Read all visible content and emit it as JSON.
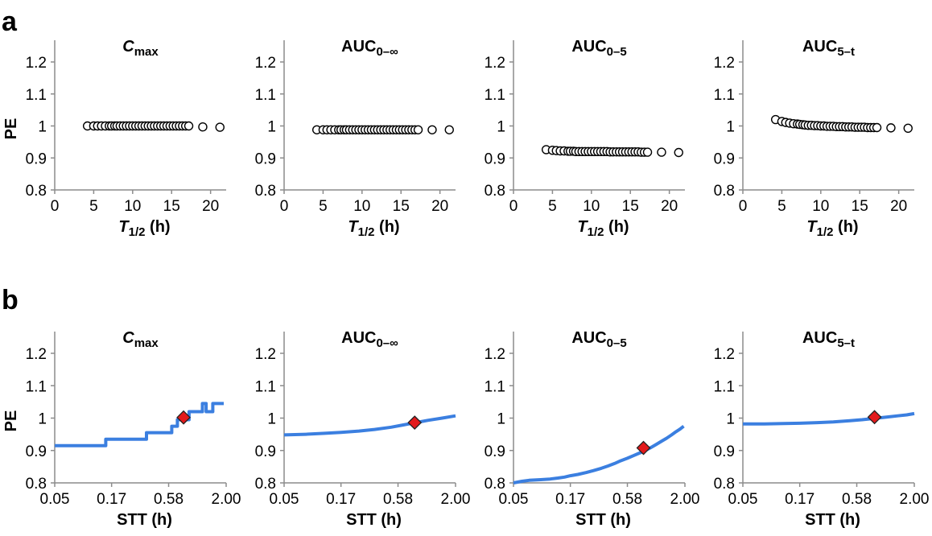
{
  "panel_letters": {
    "a": "a",
    "b": "b"
  },
  "colors": {
    "line": "#3b7fe0",
    "marker_fill": "#e31a1c",
    "marker_stroke": "#222222",
    "scatter_fill": "#ffffff",
    "scatter_stroke": "#000000"
  },
  "chart_data": [
    {
      "type": "scatter",
      "row": "a",
      "title_main": "C",
      "title_sub": "max",
      "title_main_italic": true,
      "xlabel_main": "T",
      "xlabel_sub": "1/2",
      "xlabel_suffix": " (h)",
      "ylabel": "PE",
      "xlim": [
        0,
        22
      ],
      "xticks": [
        0,
        5,
        10,
        15,
        20
      ],
      "ylim": [
        0.8,
        1.25
      ],
      "yticks": [
        0.8,
        0.9,
        1,
        1.1,
        1.2
      ],
      "ytick_labels": [
        "0.8",
        "0.9",
        "1",
        "1.1",
        "1.2"
      ],
      "series": [
        {
          "x": [
            4.2,
            5.0,
            5.5,
            6.0,
            6.5,
            7.0,
            7.3,
            7.7,
            8.0,
            8.4,
            8.8,
            9.2,
            9.6,
            10.0,
            10.4,
            10.8,
            11.2,
            11.6,
            12.0,
            12.4,
            12.8,
            13.2,
            13.6,
            14.0,
            14.4,
            14.8,
            15.2,
            15.6,
            16.0,
            16.4,
            16.8,
            17.2,
            19.0,
            21.2
          ],
          "y": [
            1.0,
            1.0,
            1.0,
            1.0,
            1.0,
            1.0,
            1.0,
            1.0,
            1.0,
            1.0,
            1.0,
            1.0,
            1.0,
            1.0,
            1.0,
            1.0,
            1.0,
            1.0,
            1.0,
            1.0,
            1.0,
            1.0,
            1.0,
            1.0,
            1.0,
            1.0,
            1.0,
            1.0,
            1.0,
            1.0,
            1.0,
            1.0,
            0.997,
            0.996
          ]
        }
      ]
    },
    {
      "type": "scatter",
      "row": "a",
      "title_main": "AUC",
      "title_sub": "0–∞",
      "title_main_italic": false,
      "xlabel_main": "T",
      "xlabel_sub": "1/2",
      "xlabel_suffix": " (h)",
      "ylabel": "",
      "xlim": [
        0,
        22
      ],
      "xticks": [
        0,
        5,
        10,
        15,
        20
      ],
      "ylim": [
        0.8,
        1.25
      ],
      "yticks": [
        0.8,
        0.9,
        1,
        1.1,
        1.2
      ],
      "ytick_labels": [
        "0.8",
        "0.9",
        "1",
        "1.1",
        "1.2"
      ],
      "series": [
        {
          "x": [
            4.2,
            5.0,
            5.5,
            6.0,
            6.5,
            7.0,
            7.3,
            7.7,
            8.0,
            8.4,
            8.8,
            9.2,
            9.6,
            10.0,
            10.4,
            10.8,
            11.2,
            11.6,
            12.0,
            12.4,
            12.8,
            13.2,
            13.6,
            14.0,
            14.4,
            14.8,
            15.2,
            15.6,
            16.0,
            16.4,
            16.8,
            17.2,
            19.0,
            21.2
          ],
          "y": [
            0.988,
            0.988,
            0.988,
            0.988,
            0.988,
            0.988,
            0.988,
            0.988,
            0.988,
            0.988,
            0.988,
            0.988,
            0.988,
            0.988,
            0.988,
            0.988,
            0.988,
            0.988,
            0.988,
            0.988,
            0.988,
            0.988,
            0.988,
            0.988,
            0.988,
            0.988,
            0.988,
            0.988,
            0.988,
            0.988,
            0.988,
            0.988,
            0.988,
            0.988
          ]
        }
      ]
    },
    {
      "type": "scatter",
      "row": "a",
      "title_main": "AUC",
      "title_sub": "0–5",
      "title_main_italic": false,
      "xlabel_main": "T",
      "xlabel_sub": "1/2",
      "xlabel_suffix": " (h)",
      "ylabel": "",
      "xlim": [
        0,
        22
      ],
      "xticks": [
        0,
        5,
        10,
        15,
        20
      ],
      "ylim": [
        0.8,
        1.25
      ],
      "yticks": [
        0.8,
        0.9,
        1,
        1.1,
        1.2
      ],
      "ytick_labels": [
        "0.8",
        "0.9",
        "1",
        "1.1",
        "1.2"
      ],
      "series": [
        {
          "x": [
            4.2,
            5.0,
            5.5,
            6.0,
            6.5,
            7.0,
            7.3,
            7.7,
            8.0,
            8.4,
            8.8,
            9.2,
            9.6,
            10.0,
            10.4,
            10.8,
            11.2,
            11.6,
            12.0,
            12.4,
            12.8,
            13.2,
            13.6,
            14.0,
            14.4,
            14.8,
            15.2,
            15.6,
            16.0,
            16.4,
            16.8,
            17.2,
            19.0,
            21.2
          ],
          "y": [
            0.926,
            0.924,
            0.923,
            0.922,
            0.922,
            0.921,
            0.921,
            0.921,
            0.92,
            0.92,
            0.92,
            0.92,
            0.92,
            0.92,
            0.92,
            0.92,
            0.92,
            0.92,
            0.92,
            0.919,
            0.919,
            0.919,
            0.919,
            0.919,
            0.919,
            0.919,
            0.919,
            0.919,
            0.919,
            0.918,
            0.918,
            0.918,
            0.918,
            0.917
          ]
        }
      ]
    },
    {
      "type": "scatter",
      "row": "a",
      "title_main": "AUC",
      "title_sub": "5–t",
      "title_main_italic": false,
      "xlabel_main": "T",
      "xlabel_sub": "1/2",
      "xlabel_suffix": " (h)",
      "ylabel": "",
      "xlim": [
        0,
        22
      ],
      "xticks": [
        0,
        5,
        10,
        15,
        20
      ],
      "ylim": [
        0.8,
        1.25
      ],
      "yticks": [
        0.8,
        0.9,
        1,
        1.1,
        1.2
      ],
      "ytick_labels": [
        "0.8",
        "0.9",
        "1",
        "1.1",
        "1.2"
      ],
      "series": [
        {
          "x": [
            4.2,
            5.0,
            5.5,
            6.0,
            6.5,
            7.0,
            7.3,
            7.7,
            8.0,
            8.4,
            8.8,
            9.2,
            9.6,
            10.0,
            10.4,
            10.8,
            11.2,
            11.6,
            12.0,
            12.4,
            12.8,
            13.2,
            13.6,
            14.0,
            14.4,
            14.8,
            15.2,
            15.6,
            16.0,
            16.4,
            16.8,
            17.2,
            19.0,
            21.2
          ],
          "y": [
            1.02,
            1.014,
            1.011,
            1.009,
            1.007,
            1.006,
            1.005,
            1.004,
            1.003,
            1.002,
            1.002,
            1.001,
            1.001,
            1.0,
            1.0,
            0.999,
            0.999,
            0.999,
            0.998,
            0.998,
            0.998,
            0.997,
            0.997,
            0.997,
            0.996,
            0.996,
            0.996,
            0.996,
            0.995,
            0.995,
            0.995,
            0.995,
            0.994,
            0.993
          ]
        }
      ]
    },
    {
      "type": "line",
      "row": "b",
      "title_main": "C",
      "title_sub": "max",
      "title_main_italic": true,
      "xlabel_main": "STT (h)",
      "xlabel_sub": "",
      "xlabel_suffix": "",
      "ylabel": "PE",
      "xscale": "log",
      "xlim": [
        0.05,
        2.0
      ],
      "xticks": [
        0.05,
        0.17,
        0.58,
        2.0
      ],
      "xtick_labels": [
        "0.05",
        "0.17",
        "0.58",
        "2.00"
      ],
      "ylim": [
        0.8,
        1.25
      ],
      "yticks": [
        0.8,
        0.9,
        1,
        1.1,
        1.2
      ],
      "ytick_labels": [
        "0.8",
        "0.9",
        "1",
        "1.1",
        "1.2"
      ],
      "series": [
        {
          "x": [
            0.05,
            0.15,
            0.15,
            0.36,
            0.36,
            0.62,
            0.62,
            0.7,
            0.7,
            0.9,
            0.9,
            1.2,
            1.2,
            1.3,
            1.3,
            1.5,
            1.5,
            1.9
          ],
          "y": [
            0.915,
            0.915,
            0.935,
            0.935,
            0.955,
            0.955,
            0.975,
            0.975,
            0.995,
            0.995,
            1.02,
            1.02,
            1.045,
            1.045,
            1.02,
            1.02,
            1.045,
            1.045
          ]
        }
      ],
      "marker": {
        "x": 0.8,
        "y": 1.002,
        "shape": "diamond"
      }
    },
    {
      "type": "line",
      "row": "b",
      "title_main": "AUC",
      "title_sub": "0–∞",
      "title_main_italic": false,
      "xlabel_main": "STT (h)",
      "xlabel_sub": "",
      "xlabel_suffix": "",
      "ylabel": "",
      "xscale": "log",
      "xlim": [
        0.05,
        2.0
      ],
      "xticks": [
        0.05,
        0.17,
        0.58,
        2.0
      ],
      "xtick_labels": [
        "0.05",
        "0.17",
        "0.58",
        "2.00"
      ],
      "ylim": [
        0.8,
        1.25
      ],
      "yticks": [
        0.8,
        0.9,
        1,
        1.1,
        1.2
      ],
      "ytick_labels": [
        "0.8",
        "0.9",
        "1",
        "1.1",
        "1.2"
      ],
      "series": [
        {
          "x": [
            0.05,
            0.08,
            0.12,
            0.17,
            0.25,
            0.35,
            0.5,
            0.65,
            0.85,
            1.1,
            1.5,
            2.0
          ],
          "y": [
            0.948,
            0.95,
            0.953,
            0.956,
            0.96,
            0.965,
            0.972,
            0.979,
            0.986,
            0.993,
            1.0,
            1.007
          ]
        }
      ],
      "marker": {
        "x": 0.83,
        "y": 0.986,
        "shape": "diamond"
      }
    },
    {
      "type": "line",
      "row": "b",
      "title_main": "AUC",
      "title_sub": "0–5",
      "title_main_italic": false,
      "xlabel_main": "STT (h)",
      "xlabel_sub": "",
      "xlabel_suffix": "",
      "ylabel": "",
      "xscale": "log",
      "xlim": [
        0.05,
        2.0
      ],
      "xticks": [
        0.05,
        0.17,
        0.58,
        2.0
      ],
      "xtick_labels": [
        "0.05",
        "0.17",
        "0.58",
        "2.00"
      ],
      "ylim": [
        0.8,
        1.25
      ],
      "yticks": [
        0.8,
        0.9,
        1,
        1.1,
        1.2
      ],
      "ytick_labels": [
        "0.8",
        "0.9",
        "1",
        "1.1",
        "1.2"
      ],
      "series": [
        {
          "x": [
            0.05,
            0.06,
            0.07,
            0.09,
            0.11,
            0.13,
            0.15,
            0.17,
            0.2,
            0.24,
            0.28,
            0.33,
            0.38,
            0.44,
            0.5,
            0.58,
            0.66,
            0.75,
            0.85,
            0.95,
            1.07,
            1.2,
            1.35,
            1.5,
            1.65,
            1.8,
            1.95
          ],
          "y": [
            0.8,
            0.805,
            0.808,
            0.81,
            0.812,
            0.815,
            0.818,
            0.822,
            0.826,
            0.832,
            0.838,
            0.845,
            0.852,
            0.86,
            0.868,
            0.876,
            0.884,
            0.892,
            0.9,
            0.908,
            0.918,
            0.928,
            0.938,
            0.948,
            0.958,
            0.966,
            0.975
          ]
        }
      ],
      "marker": {
        "x": 0.82,
        "y": 0.908,
        "shape": "diamond"
      }
    },
    {
      "type": "line",
      "row": "b",
      "title_main": "AUC",
      "title_sub": "5–t",
      "title_main_italic": false,
      "xlabel_main": "STT (h)",
      "xlabel_sub": "",
      "xlabel_suffix": "",
      "ylabel": "",
      "xscale": "log",
      "xlim": [
        0.05,
        2.0
      ],
      "xticks": [
        0.05,
        0.17,
        0.58,
        2.0
      ],
      "xtick_labels": [
        "0.05",
        "0.17",
        "0.58",
        "2.00"
      ],
      "ylim": [
        0.8,
        1.25
      ],
      "yticks": [
        0.8,
        0.9,
        1,
        1.1,
        1.2
      ],
      "ytick_labels": [
        "0.8",
        "0.9",
        "1",
        "1.1",
        "1.2"
      ],
      "series": [
        {
          "x": [
            0.05,
            0.08,
            0.12,
            0.17,
            0.25,
            0.35,
            0.5,
            0.65,
            0.85,
            1.1,
            1.4,
            1.7,
            2.0
          ],
          "y": [
            0.982,
            0.982,
            0.983,
            0.984,
            0.986,
            0.988,
            0.992,
            0.995,
            0.999,
            1.003,
            1.007,
            1.01,
            1.014
          ]
        }
      ],
      "marker": {
        "x": 0.85,
        "y": 1.003,
        "shape": "diamond"
      }
    }
  ]
}
